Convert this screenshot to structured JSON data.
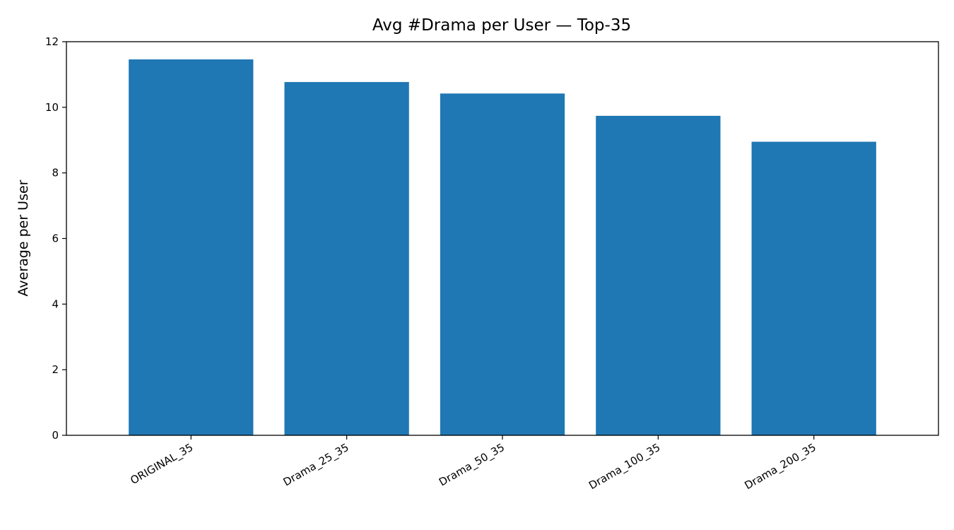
{
  "chart_data": {
    "type": "bar",
    "title": "Avg #Drama per User — Top-35",
    "xlabel": "",
    "ylabel": "Average per User",
    "categories": [
      "ORIGINAL_35",
      "Drama_25_35",
      "Drama_50_35",
      "Drama_100_35",
      "Drama_200_35"
    ],
    "values": [
      11.46,
      10.77,
      10.42,
      9.74,
      8.95
    ],
    "ylim": [
      0,
      12
    ],
    "yticks": [
      "0",
      "2",
      "4",
      "6",
      "8",
      "10",
      "12"
    ],
    "bar_color": "#1f77b4",
    "grid": false,
    "legend": "none"
  }
}
